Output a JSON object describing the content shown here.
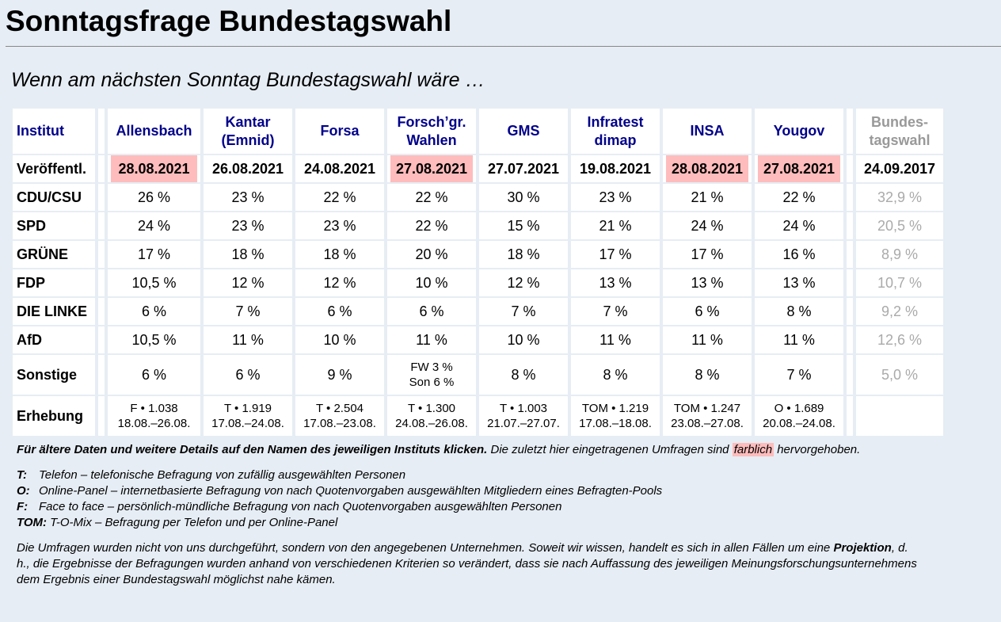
{
  "title": "Sonntagsfrage Bundestagswahl",
  "subtitle": "Wenn am nächsten Sonntag Bundestagswahl wäre …",
  "table": {
    "row_label_header": "Institut",
    "published_label": "Veröffentl.",
    "columns": [
      {
        "name": "Allensbach",
        "published": "28.08.2021",
        "highlight": true,
        "values": [
          "26 %",
          "24 %",
          "17 %",
          "10,5 %",
          "6 %",
          "10,5 %"
        ],
        "sonstige": [
          "6 %"
        ],
        "erhebung": [
          "F • 1.038",
          "18.08.–26.08."
        ]
      },
      {
        "name": "Kantar (Emnid)",
        "published": "26.08.2021",
        "highlight": false,
        "values": [
          "23 %",
          "23 %",
          "18 %",
          "12 %",
          "7 %",
          "11 %"
        ],
        "sonstige": [
          "6 %"
        ],
        "erhebung": [
          "T • 1.919",
          "17.08.–24.08."
        ]
      },
      {
        "name": "Forsa",
        "published": "24.08.2021",
        "highlight": false,
        "values": [
          "22 %",
          "23 %",
          "18 %",
          "12 %",
          "6 %",
          "10 %"
        ],
        "sonstige": [
          "9 %"
        ],
        "erhebung": [
          "T • 2.504",
          "17.08.–23.08."
        ]
      },
      {
        "name": "Forsch’gr. Wahlen",
        "published": "27.08.2021",
        "highlight": true,
        "values": [
          "22 %",
          "22 %",
          "20 %",
          "10 %",
          "6 %",
          "11 %"
        ],
        "sonstige": [
          "FW 3 %",
          "Son 6 %"
        ],
        "erhebung": [
          "T • 1.300",
          "24.08.–26.08."
        ]
      },
      {
        "name": "GMS",
        "published": "27.07.2021",
        "highlight": false,
        "values": [
          "30 %",
          "15 %",
          "18 %",
          "12 %",
          "7 %",
          "10 %"
        ],
        "sonstige": [
          "8 %"
        ],
        "erhebung": [
          "T • 1.003",
          "21.07.–27.07."
        ]
      },
      {
        "name": "Infratest dimap",
        "published": "19.08.2021",
        "highlight": false,
        "values": [
          "23 %",
          "21 %",
          "17 %",
          "13 %",
          "7 %",
          "11 %"
        ],
        "sonstige": [
          "8 %"
        ],
        "erhebung": [
          "TOM • 1.219",
          "17.08.–18.08."
        ]
      },
      {
        "name": "INSA",
        "published": "28.08.2021",
        "highlight": true,
        "values": [
          "21 %",
          "24 %",
          "17 %",
          "13 %",
          "6 %",
          "11 %"
        ],
        "sonstige": [
          "8 %"
        ],
        "erhebung": [
          "TOM • 1.247",
          "23.08.–27.08."
        ]
      },
      {
        "name": "Yougov",
        "published": "27.08.2021",
        "highlight": true,
        "values": [
          "22 %",
          "24 %",
          "16 %",
          "13 %",
          "8 %",
          "11 %"
        ],
        "sonstige": [
          "7 %"
        ],
        "erhebung": [
          "O • 1.689",
          "20.08.–24.08."
        ]
      }
    ],
    "election": {
      "name": "Bundes-tagswahl",
      "published": "24.09.2017",
      "values": [
        "32,9 %",
        "20,5 %",
        "8,9 %",
        "10,7 %",
        "9,2 %",
        "12,6 %"
      ],
      "sonstige": "5,0 %"
    },
    "parties": [
      "CDU/CSU",
      "SPD",
      "GRÜNE",
      "FDP",
      "DIE LINKE",
      "AfD"
    ],
    "sonstige_label": "Sonstige",
    "erhebung_label": "Erhebung"
  },
  "notes": {
    "line1_bold": "Für ältere Daten und weitere Details auf den Namen des jeweiligen Instituts klicken.",
    "line1_rest": " Die zuletzt hier eingetragenen Umfragen sind ",
    "line1_marked": "farblich",
    "line1_end": " hervorgehoben.",
    "legend": [
      {
        "key": "T:",
        "text": "Telefon – telefonische Befragung von zufällig ausgewählten Personen"
      },
      {
        "key": "O:",
        "text": "Online-Panel – internetbasierte Befragung von nach Quotenvorgaben ausgewählten Mitgliedern eines Befragten-Pools"
      },
      {
        "key": "F:",
        "text": "Face to face – persönlich-mündliche Befragung von nach Quotenvorgaben ausgewählten Personen"
      },
      {
        "key": "TOM:",
        "text": "T-O-Mix – Befragung per Telefon und per Online-Panel"
      }
    ],
    "disclaimer_a": "Die Umfragen wurden nicht von uns durchgeführt, sondern von den angegebenen Unternehmen. Soweit wir wissen, handelt es sich in allen Fällen um eine ",
    "disclaimer_bold": "Projektion",
    "disclaimer_b": ", d. h., die Ergebnisse der Befragungen wurden anhand von verschiedenen Kriterien so verändert, dass sie nach Auffassung des jeweiligen Meinungsforschungsunternehmens dem Ergebnis einer Bundestagswahl möglichst nahe kämen."
  },
  "colors": {
    "background": "#e6edf4",
    "highlight": "#ffbcbc",
    "link": "#00008b"
  }
}
